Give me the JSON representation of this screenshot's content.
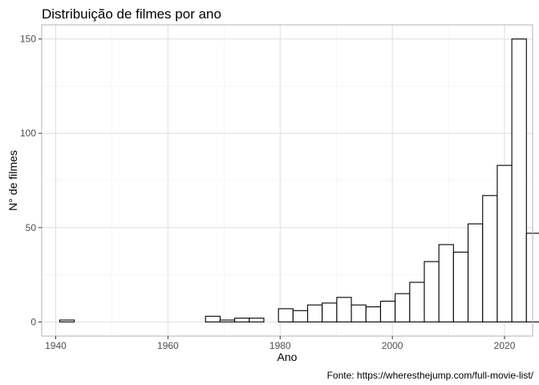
{
  "chart_data": {
    "type": "bar",
    "subtype": "histogram",
    "title": "Distribuição de filmes por ano",
    "xlabel": "Ano",
    "ylabel": "N° de filmes",
    "caption": "Fonte: https://wheresthejump.com/full-movie-list/",
    "xlim": [
      1937.5,
      2025
    ],
    "ylim": [
      -7.5,
      157.5
    ],
    "x_ticks": [
      1940,
      1960,
      1980,
      2000,
      2020
    ],
    "x_tick_labels": [
      "1940",
      "1960",
      "1980",
      "2000",
      "2020"
    ],
    "y_ticks": [
      0,
      50,
      100,
      150
    ],
    "y_tick_labels": [
      "0",
      "50",
      "100",
      "150"
    ],
    "bin_width": 2.6,
    "bin_start": 1940.7,
    "values": [
      1,
      0,
      0,
      0,
      0,
      0,
      0,
      0,
      0,
      0,
      3,
      1,
      2,
      2,
      0,
      7,
      6,
      9,
      10,
      13,
      9,
      8,
      11,
      15,
      21,
      32,
      41,
      37,
      52,
      67,
      83,
      150,
      47
    ],
    "grid": true,
    "legend": "none",
    "colors": {
      "bar_fill": "#ffffff",
      "bar_stroke": "#000000",
      "grid_major": "#dedede",
      "grid_minor": "#efefef",
      "panel_border": "#b3b3b3",
      "tick_text": "#4d4d4d"
    }
  }
}
